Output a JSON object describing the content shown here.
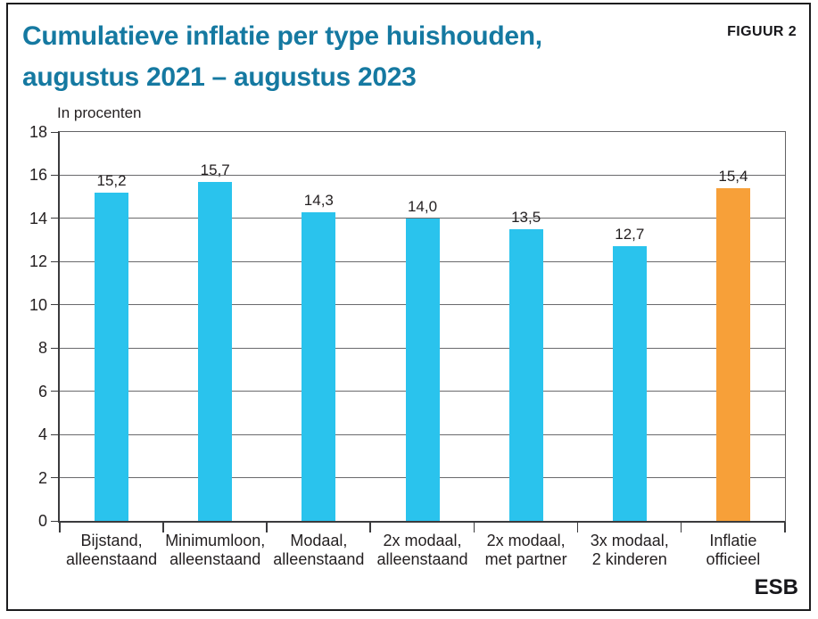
{
  "header": {
    "title_line1": "Cumulatieve inflatie per type huishouden,",
    "title_line2": "augustus 2021 – augustus 2023",
    "figure_label": "FIGUUR 2"
  },
  "footer": {
    "logo": "ESB"
  },
  "colors": {
    "title": "#1579a1",
    "bar_default": "#2ac3ed",
    "bar_highlight": "#f7a039",
    "text": "#231f20",
    "gridline": "#6a6a6c",
    "axis": "#3b3b3d"
  },
  "chart_data": {
    "type": "bar",
    "title": "Cumulatieve inflatie per type huishouden, augustus 2021 – augustus 2023",
    "unit_label": "In procenten",
    "categories": [
      "Bijstand,\nalleenstaand",
      "Minimumloon,\nalleenstaand",
      "Modaal,\nalleenstaand",
      "2x modaal,\nalleenstaand",
      "2x modaal,\nmet partner",
      "3x modaal,\n2 kinderen",
      "Inflatie\nofficieel"
    ],
    "values": [
      15.2,
      15.7,
      14.3,
      14.0,
      13.5,
      12.7,
      15.4
    ],
    "value_labels": [
      "15,2",
      "15,7",
      "14,3",
      "14,0",
      "13,5",
      "12,7",
      "15,4"
    ],
    "bar_colors": [
      "#2ac3ed",
      "#2ac3ed",
      "#2ac3ed",
      "#2ac3ed",
      "#2ac3ed",
      "#2ac3ed",
      "#f7a039"
    ],
    "highlighted_category": "Inflatie officieel",
    "ylim": [
      0,
      18
    ],
    "ytick_interval": 2,
    "grid": true,
    "legend_position": "none",
    "xlabel": "",
    "ylabel": "In procenten"
  }
}
